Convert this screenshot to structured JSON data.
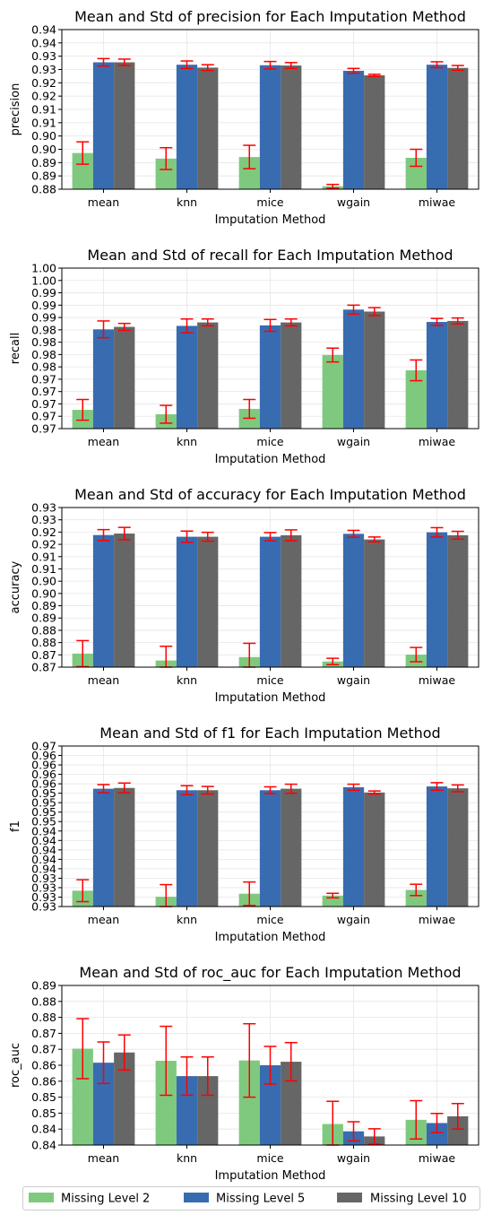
{
  "chart_data": [
    {
      "type": "bar",
      "title": "Mean and Std of precision for Each Imputation Method",
      "xlabel": "Imputation Method",
      "ylabel": "precision",
      "categories": [
        "mean",
        "knn",
        "mice",
        "wgain",
        "miwae"
      ],
      "ylim": [
        0.88,
        0.94
      ],
      "yticks": [
        0.88,
        0.885,
        0.89,
        0.895,
        0.9,
        0.905,
        0.91,
        0.915,
        0.92,
        0.925,
        0.93,
        0.935,
        0.94
      ],
      "ytick_labels": [
        "0.88",
        "0.89",
        "0.89",
        "0.90",
        "0.90",
        "0.91",
        "0.91",
        "0.92",
        "0.92",
        "0.93",
        "0.93",
        "0.94",
        "0.94"
      ],
      "grid": true,
      "series": [
        {
          "name": "Missing Level 2",
          "values": [
            0.8936,
            0.8915,
            0.8921,
            0.8811,
            0.8918
          ],
          "std": [
            0.0042,
            0.0041,
            0.0044,
            0.0007,
            0.0032
          ]
        },
        {
          "name": "Missing Level 5",
          "values": [
            0.9277,
            0.9268,
            0.9266,
            0.9245,
            0.9268
          ],
          "std": [
            0.0014,
            0.0014,
            0.0014,
            0.0009,
            0.0011
          ]
        },
        {
          "name": "Missing Level 10",
          "values": [
            0.9277,
            0.9257,
            0.9265,
            0.9228,
            0.9256
          ],
          "std": [
            0.0012,
            0.0011,
            0.0011,
            0.0004,
            0.0009
          ]
        }
      ]
    },
    {
      "type": "bar",
      "title": "Mean and Std of recall for Each Imputation Method",
      "xlabel": "Imputation Method",
      "ylabel": "recall",
      "categories": [
        "mean",
        "knn",
        "mice",
        "wgain",
        "miwae"
      ],
      "ylim": [
        0.965,
        0.9975
      ],
      "yticks": [
        0.965,
        0.9675,
        0.97,
        0.9725,
        0.975,
        0.9775,
        0.98,
        0.9825,
        0.985,
        0.9875,
        0.99,
        0.9925,
        0.995,
        0.9975
      ],
      "ytick_labels": [
        "0.97",
        "0.97",
        "0.97",
        "0.97",
        "0.97",
        "0.98",
        "0.98",
        "0.98",
        "0.98",
        "0.99",
        "0.99",
        "0.99",
        "1.00",
        "1.00"
      ],
      "grid": true,
      "series": [
        {
          "name": "Missing Level 2",
          "values": [
            0.9688,
            0.9679,
            0.969,
            0.9799,
            0.9768
          ],
          "std": [
            0.0021,
            0.0018,
            0.0019,
            0.0014,
            0.0021
          ]
        },
        {
          "name": "Missing Level 5",
          "values": [
            0.9851,
            0.9858,
            0.9859,
            0.9891,
            0.9866
          ],
          "std": [
            0.0017,
            0.0014,
            0.0012,
            0.0009,
            0.0007
          ]
        },
        {
          "name": "Missing Level 10",
          "values": [
            0.9856,
            0.9865,
            0.9865,
            0.9887,
            0.9868
          ],
          "std": [
            0.0007,
            0.0007,
            0.0007,
            0.0008,
            0.0006
          ]
        }
      ]
    },
    {
      "type": "bar",
      "title": "Mean and Std of accuracy for Each Imputation Method",
      "xlabel": "Imputation Method",
      "ylabel": "accuracy",
      "categories": [
        "mean",
        "knn",
        "mice",
        "wgain",
        "miwae"
      ],
      "ylim": [
        0.865,
        0.93
      ],
      "yticks": [
        0.865,
        0.87,
        0.875,
        0.88,
        0.885,
        0.89,
        0.895,
        0.9,
        0.905,
        0.91,
        0.915,
        0.92,
        0.925,
        0.93
      ],
      "ytick_labels": [
        "0.87",
        "0.87",
        "0.88",
        "0.88",
        "0.89",
        "0.89",
        "0.90",
        "0.90",
        "0.91",
        "0.91",
        "0.92",
        "0.92",
        "0.93",
        "0.93"
      ],
      "grid": true,
      "series": [
        {
          "name": "Missing Level 2",
          "values": [
            0.8705,
            0.8677,
            0.8691,
            0.8673,
            0.8701
          ],
          "std": [
            0.0053,
            0.0058,
            0.0056,
            0.0013,
            0.0029
          ]
        },
        {
          "name": "Missing Level 5",
          "values": [
            0.9188,
            0.9181,
            0.9181,
            0.9193,
            0.9199
          ],
          "std": [
            0.0022,
            0.0023,
            0.0017,
            0.0014,
            0.0019
          ]
        },
        {
          "name": "Missing Level 10",
          "values": [
            0.9194,
            0.9181,
            0.9187,
            0.917,
            0.9187
          ],
          "std": [
            0.0025,
            0.0018,
            0.0022,
            0.001,
            0.0016
          ]
        }
      ]
    },
    {
      "type": "bar",
      "title": "Mean and Std of f1 for Each Imputation Method",
      "xlabel": "Imputation Method",
      "ylabel": "f1",
      "categories": [
        "mean",
        "knn",
        "mice",
        "wgain",
        "miwae"
      ],
      "ylim": [
        0.925,
        0.9675
      ],
      "yticks": [
        0.925,
        0.9275,
        0.93,
        0.9325,
        0.935,
        0.9375,
        0.94,
        0.9425,
        0.945,
        0.9475,
        0.95,
        0.9525,
        0.955,
        0.9575,
        0.96,
        0.9625,
        0.965,
        0.9675
      ],
      "ytick_labels": [
        "0.93",
        "0.93",
        "0.93",
        "0.93",
        "0.94",
        "0.94",
        "0.94",
        "0.94",
        "0.94",
        "0.95",
        "0.95",
        "0.95",
        "0.95",
        "0.96",
        "0.96",
        "0.96",
        "0.96",
        "0.97"
      ],
      "grid": true,
      "series": [
        {
          "name": "Missing Level 2",
          "values": [
            0.9292,
            0.9276,
            0.9284,
            0.9279,
            0.9294
          ],
          "std": [
            0.0029,
            0.0032,
            0.0031,
            0.0006,
            0.0015
          ]
        },
        {
          "name": "Missing Level 5",
          "values": [
            0.9562,
            0.9558,
            0.9558,
            0.9566,
            0.9568
          ],
          "std": [
            0.0011,
            0.0012,
            0.0009,
            0.0008,
            0.001
          ]
        },
        {
          "name": "Missing Level 10",
          "values": [
            0.9564,
            0.9558,
            0.9562,
            0.9552,
            0.9563
          ],
          "std": [
            0.0013,
            0.001,
            0.0012,
            0.0004,
            0.0009
          ]
        }
      ]
    },
    {
      "type": "bar",
      "title": "Mean and Std of roc_auc for Each Imputation Method",
      "xlabel": "Imputation Method",
      "ylabel": "roc_auc",
      "categories": [
        "mean",
        "knn",
        "mice",
        "wgain",
        "miwae"
      ],
      "ylim": [
        0.84,
        0.89
      ],
      "yticks": [
        0.84,
        0.845,
        0.85,
        0.855,
        0.86,
        0.865,
        0.87,
        0.875,
        0.88,
        0.885,
        0.89
      ],
      "ytick_labels": [
        "0.84",
        "0.84",
        "0.85",
        "0.85",
        "0.86",
        "0.86",
        "0.87",
        "0.87",
        "0.88",
        "0.88",
        "0.89"
      ],
      "grid": true,
      "series": [
        {
          "name": "Missing Level 2",
          "values": [
            0.8702,
            0.8664,
            0.8665,
            0.8466,
            0.8479
          ],
          "std": [
            0.0094,
            0.0108,
            0.0115,
            0.0071,
            0.006
          ]
        },
        {
          "name": "Missing Level 5",
          "values": [
            0.8658,
            0.8616,
            0.865,
            0.8443,
            0.8469
          ],
          "std": [
            0.0065,
            0.006,
            0.0059,
            0.003,
            0.003
          ]
        },
        {
          "name": "Missing Level 10",
          "values": [
            0.869,
            0.8616,
            0.8661,
            0.8427,
            0.849
          ],
          "std": [
            0.0055,
            0.006,
            0.006,
            0.0024,
            0.004
          ]
        }
      ]
    }
  ],
  "legend": {
    "placement": "bottom",
    "items": [
      "Missing Level 2",
      "Missing Level 5",
      "Missing Level 10"
    ]
  },
  "colors": {
    "series": [
      "#7fc97f",
      "#386cb0",
      "#666666"
    ],
    "error_bar": "#ff0000",
    "grid": "#e6e6e6",
    "axis": "#000000"
  }
}
